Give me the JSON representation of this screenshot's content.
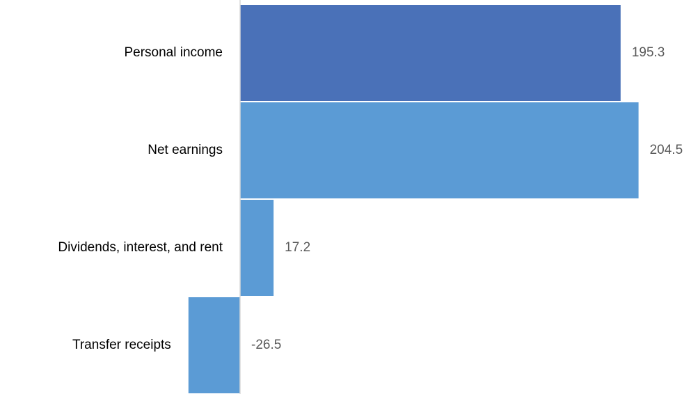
{
  "chart_data": {
    "type": "barh",
    "categories": [
      "Personal income",
      "Net earnings",
      "Dividends, interest, and rent",
      "Transfer receipts"
    ],
    "values": [
      195.3,
      204.5,
      17.2,
      -26.5
    ],
    "colors": [
      "#4a71b8",
      "#5b9bd5",
      "#5b9bd5",
      "#5b9bd5"
    ],
    "xlim": [
      -50,
      225
    ]
  }
}
